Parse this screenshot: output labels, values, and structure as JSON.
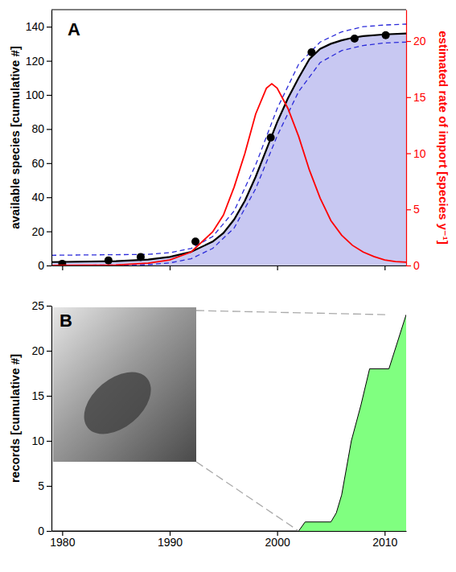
{
  "chart_data": [
    {
      "type": "line",
      "title": "A",
      "y_label": "available species [cumulative #]",
      "y2_label": "estimated rate of import [species y⁻¹]",
      "xlim": [
        1979,
        2012
      ],
      "xticks": [
        1980,
        1990,
        2000,
        2010
      ],
      "ylim": [
        0,
        150
      ],
      "yticks": [
        0,
        20,
        40,
        60,
        80,
        100,
        120,
        140
      ],
      "y2lim": [
        0,
        22.8
      ],
      "y2ticks": [
        0,
        5,
        10,
        15,
        20
      ],
      "tick_labels": "y",
      "series": [
        {
          "type": "area",
          "color": "#c8c8f2",
          "x": [
            1979,
            1985,
            1988,
            1990,
            1992,
            1994,
            1995,
            1996,
            1997,
            1998,
            1999,
            2000,
            2001,
            2002,
            2003,
            2004,
            2005,
            2006,
            2007,
            2008,
            2010,
            2012
          ],
          "values": [
            2,
            2.5,
            3.5,
            5,
            8,
            14,
            19,
            27,
            38,
            52,
            68,
            84,
            98,
            110,
            121,
            127,
            130,
            132,
            133.5,
            134.5,
            135.5,
            136
          ]
        },
        {
          "type": "line",
          "color": "#2b2bd9",
          "line_style": "dashed",
          "x": [
            1979,
            1988,
            1990,
            1992,
            1994,
            1996,
            1998,
            2000,
            2002,
            2004,
            2006,
            2008,
            2010,
            2012
          ],
          "values": [
            6,
            6.5,
            7.5,
            10,
            17,
            32,
            59,
            92,
            118,
            131,
            137,
            140,
            141,
            141.5
          ]
        },
        {
          "type": "line",
          "color": "#2b2bd9",
          "line_style": "dashed",
          "x": [
            1979,
            1988,
            1990,
            1992,
            1994,
            1996,
            1998,
            2000,
            2002,
            2004,
            2006,
            2008,
            2010,
            2012
          ],
          "values": [
            0,
            0.5,
            1.5,
            4,
            10,
            22,
            45,
            76,
            102,
            119,
            126,
            129,
            130.5,
            131
          ]
        },
        {
          "type": "scatter",
          "marker": "circle",
          "color": "#000000",
          "x": [
            1980,
            1984.3,
            1987.3,
            1992.4,
            1999.4,
            2003.2,
            2007.2,
            2010.1
          ],
          "values": [
            1,
            3,
            5,
            14,
            75,
            125,
            133,
            135
          ]
        },
        {
          "type": "line",
          "axis": "y2",
          "color": "#ff0000",
          "x": [
            1979,
            1985,
            1988,
            1990,
            1992,
            1994,
            1995,
            1996,
            1997,
            1998,
            1999,
            1999.5,
            2000,
            2001,
            2002,
            2003,
            2004,
            2005,
            2006,
            2007,
            2008,
            2009,
            2010,
            2011,
            2012
          ],
          "values": [
            0,
            0.05,
            0.2,
            0.5,
            1.2,
            3,
            4.5,
            7,
            10,
            13.5,
            15.8,
            16.2,
            15.8,
            14,
            11.5,
            8.5,
            6,
            4,
            2.7,
            1.8,
            1.2,
            0.8,
            0.5,
            0.35,
            0.3
          ]
        }
      ]
    },
    {
      "type": "area",
      "title": "B",
      "y_label": "records [cumulative #]",
      "xlim": [
        1979,
        2012
      ],
      "xticks": [
        1980,
        1990,
        2000,
        2010
      ],
      "ylim": [
        0,
        25
      ],
      "yticks": [
        0,
        5,
        10,
        15,
        20,
        25
      ],
      "series": [
        {
          "color": "#80ff80",
          "x": [
            1979,
            2002,
            2002.6,
            2005,
            2005.5,
            2006,
            2006.9,
            2007.8,
            2008.6,
            2010.4,
            2012
          ],
          "values": [
            0,
            0,
            1,
            1,
            2,
            4,
            10,
            14,
            18,
            18,
            24
          ]
        }
      ]
    }
  ]
}
